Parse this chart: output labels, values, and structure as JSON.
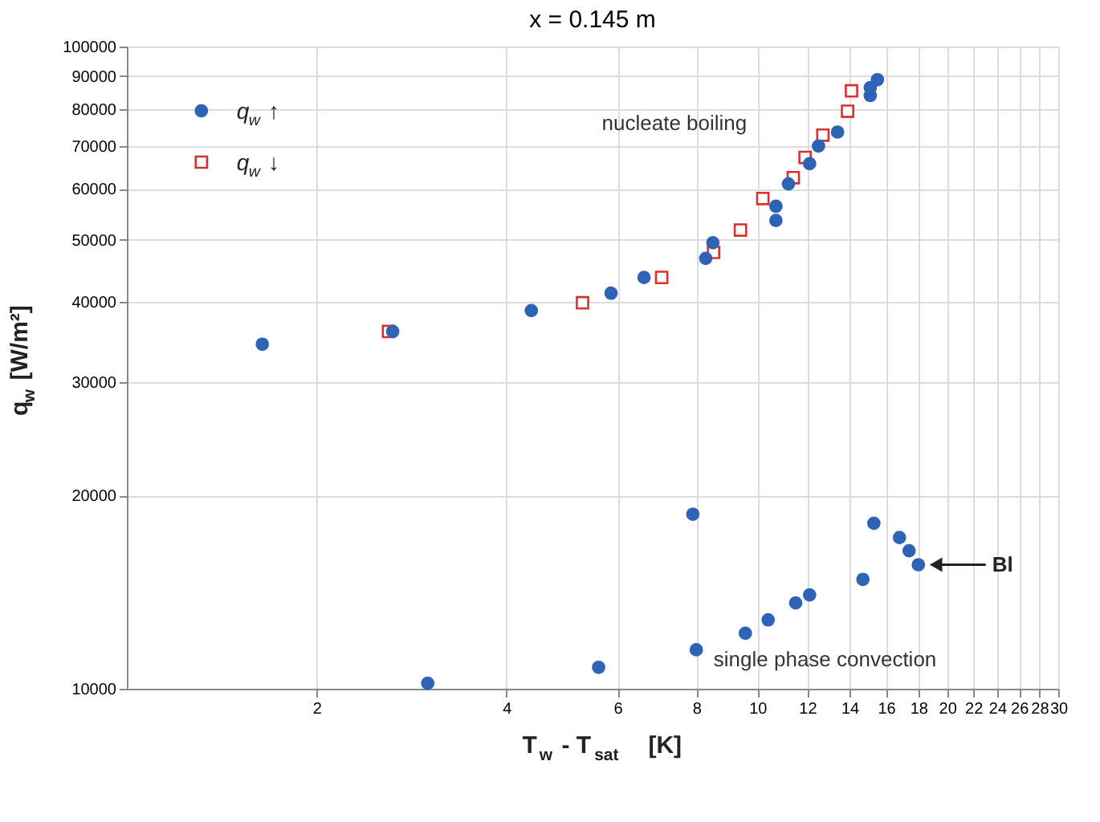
{
  "chart_data": {
    "type": "scatter",
    "title": "x = 0.145 m",
    "xlabel": "T$_{w}$ - T$_{sat}$  [K]",
    "ylabel": "q$_{w}$ [W/m²]",
    "log": "xy",
    "grid": true,
    "legend": "top left",
    "xlim": [
      1,
      30
    ],
    "xticks": [
      2,
      4,
      6,
      8,
      10,
      12,
      14,
      16,
      18,
      20,
      22,
      24,
      26,
      28,
      30
    ],
    "ylim": [
      10000,
      100000
    ],
    "yticks": [
      10000,
      20000,
      30000,
      40000,
      50000,
      60000,
      70000,
      80000,
      90000,
      100000
    ],
    "series": [
      {
        "name": "q$_{w}$ ↑",
        "color": "#2e63b5",
        "marker": "circle",
        "x": [
          1.64,
          2.64,
          4.38,
          5.86,
          6.61,
          8.28,
          8.5,
          10.7,
          10.7,
          11.2,
          12.1,
          12.5,
          13.4,
          15.1,
          15.1,
          15.5,
          3.0,
          5.6,
          7.9,
          8.0,
          9.57,
          10.4,
          11.5,
          12.1,
          14.7,
          15.3,
          16.8,
          17.4,
          18.0
        ],
        "values": [
          34400,
          36000,
          38800,
          41300,
          43700,
          46800,
          49500,
          53600,
          56400,
          61100,
          65700,
          70000,
          73600,
          83900,
          86300,
          88800,
          10200,
          10800,
          18700,
          11500,
          12200,
          12800,
          13600,
          14000,
          14800,
          18100,
          17200,
          16400,
          15600
        ]
      },
      {
        "name": "q$_{w}$ ↓",
        "color": "#d9312f",
        "marker": "square",
        "x": [
          2.6,
          5.28,
          7.05,
          8.52,
          9.4,
          10.2,
          11.4,
          11.9,
          12.7,
          13.9,
          14.1
        ],
        "values": [
          36000,
          39900,
          43700,
          47800,
          51800,
          58000,
          62500,
          67200,
          72800,
          79300,
          85300
        ]
      }
    ],
    "annotations": [
      "nucleate boiling",
      "single phase convection",
      {
        "text": "Bl",
        "x": 18,
        "y": 15600
      }
    ]
  }
}
